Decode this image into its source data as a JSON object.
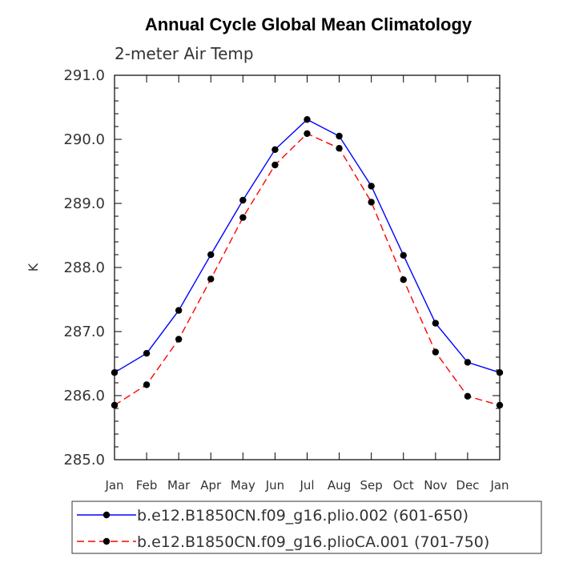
{
  "chart_data": {
    "type": "line",
    "title": "Annual Cycle Global Mean Climatology",
    "subtitle": "2-meter Air Temp",
    "xlabel": "",
    "ylabel": "K",
    "categories": [
      "Jan",
      "Feb",
      "Mar",
      "Apr",
      "May",
      "Jun",
      "Jul",
      "Aug",
      "Sep",
      "Oct",
      "Nov",
      "Dec",
      "Jan"
    ],
    "ylim": [
      285.0,
      291.0
    ],
    "yticks": [
      "285.0",
      "286.0",
      "287.0",
      "288.0",
      "289.0",
      "290.0",
      "291.0"
    ],
    "series": [
      {
        "name": "b.e12.B1850CN.f09_g16.plio.002 (601-650)",
        "color": "#0000ff",
        "dash": "solid",
        "marker": "filled-circle",
        "values": [
          286.36,
          286.66,
          287.33,
          288.2,
          289.05,
          289.84,
          290.31,
          290.05,
          289.27,
          288.19,
          287.13,
          286.52,
          286.36
        ]
      },
      {
        "name": "b.e12.B1850CN.f09_g16.plioCA.001 (701-750)",
        "color": "#ff0000",
        "dash": "dashed",
        "marker": "filled-circle",
        "values": [
          285.85,
          286.17,
          286.88,
          287.82,
          288.78,
          289.6,
          290.09,
          289.86,
          289.02,
          287.81,
          286.68,
          285.99,
          285.85
        ]
      }
    ],
    "grid": false,
    "legend_position": "bottom"
  }
}
